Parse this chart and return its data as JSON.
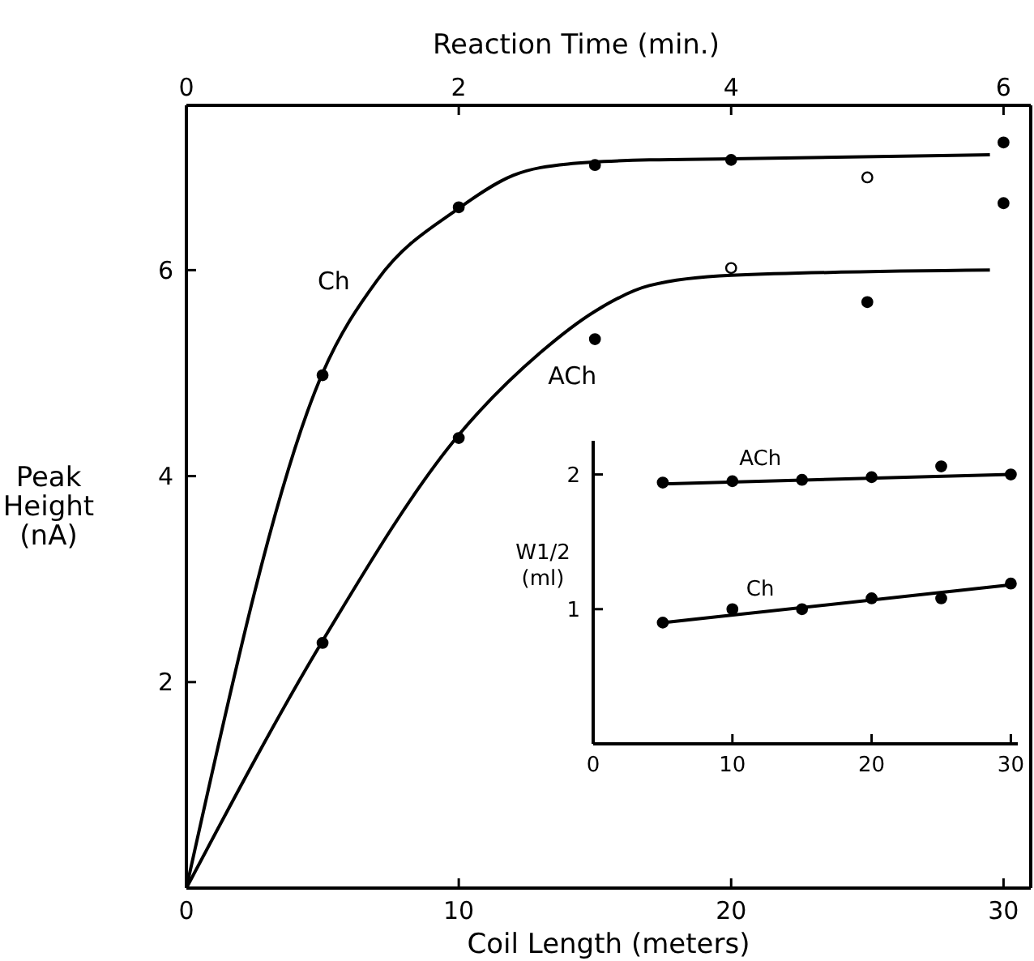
{
  "chart_data": [
    {
      "type": "line",
      "xlabel": "Coil Length (meters)",
      "ylabel": "Peak Height (nA)",
      "x2label": "Reaction Time (min.)",
      "xlim": [
        0,
        31
      ],
      "xticks": [
        0,
        10,
        20,
        30
      ],
      "ylim": [
        0,
        7.6
      ],
      "yticks": [
        2,
        4,
        6
      ],
      "x2lim": [
        0,
        6.2
      ],
      "x2ticks": [
        0,
        2,
        4,
        6
      ],
      "series": [
        {
          "name": "Ch",
          "type": "line",
          "color": "#000000",
          "marker": "none",
          "x": [
            0,
            5,
            7,
            10,
            12,
            14,
            17,
            20,
            29.5
          ],
          "values": [
            0,
            5,
            5.9,
            6.6,
            6.92,
            7.03,
            7.07,
            7.08,
            7.12
          ]
        },
        {
          "name": "ACh",
          "type": "line",
          "color": "#000000",
          "marker": "none",
          "x": [
            0,
            5,
            10,
            13,
            15,
            17,
            20,
            29.5
          ],
          "values": [
            0,
            2.4,
            4.4,
            5.2,
            5.6,
            5.85,
            5.95,
            6.0
          ]
        },
        {
          "type": "scatter",
          "color": "#000000",
          "marker": "circle",
          "x": [
            5,
            10,
            15,
            20,
            30,
            5,
            10,
            15,
            25,
            30
          ],
          "values": [
            4.98,
            6.61,
            7.02,
            7.07,
            7.24,
            2.38,
            4.37,
            5.33,
            5.69,
            6.65
          ]
        },
        {
          "type": "scatter",
          "color": "#ffffff",
          "marker": "circle",
          "x": [
            20,
            25
          ],
          "values": [
            6.02,
            6.9
          ]
        }
      ]
    },
    {
      "type": "line",
      "ylabel": "W1/2 (ml)",
      "xlim": [
        0,
        30.5
      ],
      "xticks": [
        0,
        10,
        20,
        30
      ],
      "ylim": [
        0,
        2.25
      ],
      "yticks": [
        1,
        2
      ],
      "series": [
        {
          "name": "ACh",
          "type": "line",
          "color": "#000000",
          "marker": "none",
          "x": [
            5,
            30
          ],
          "values": [
            1.93,
            2.0
          ]
        },
        {
          "name": "Ch",
          "type": "line",
          "color": "#000000",
          "marker": "none",
          "x": [
            5,
            30
          ],
          "values": [
            0.9,
            1.18
          ]
        },
        {
          "type": "scatter",
          "color": "#000000",
          "marker": "circle",
          "x": [
            5,
            10,
            15,
            20,
            25,
            30,
            5,
            10,
            15,
            20,
            25,
            30
          ],
          "values": [
            1.94,
            1.95,
            1.96,
            1.98,
            2.06,
            2.0,
            0.9,
            1.0,
            1.0,
            1.08,
            1.08,
            1.19
          ]
        }
      ]
    }
  ]
}
